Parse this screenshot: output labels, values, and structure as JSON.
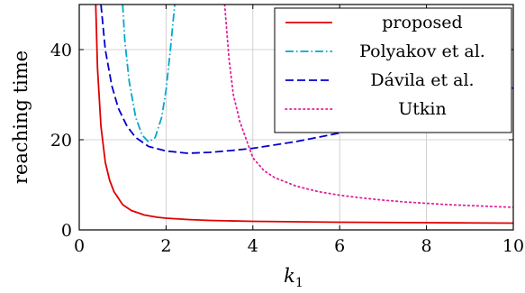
{
  "chart_data": {
    "type": "line",
    "xlabel": "k",
    "xlabel_sub": "1",
    "ylabel": "reaching time",
    "xlim": [
      0,
      10
    ],
    "ylim": [
      0,
      50
    ],
    "xticks": [
      0,
      2,
      4,
      6,
      8,
      10
    ],
    "yticks": [
      0,
      20,
      40
    ],
    "grid": true,
    "legend_position": "top-right",
    "series": [
      {
        "name": "proposed",
        "color": "#e00000",
        "dash": "solid",
        "points": [
          [
            0.38,
            50
          ],
          [
            0.42,
            36
          ],
          [
            0.5,
            23
          ],
          [
            0.6,
            15
          ],
          [
            0.7,
            11
          ],
          [
            0.8,
            8.5
          ],
          [
            1.0,
            5.6
          ],
          [
            1.2,
            4.3
          ],
          [
            1.5,
            3.3
          ],
          [
            1.8,
            2.8
          ],
          [
            2.0,
            2.6
          ],
          [
            2.5,
            2.3
          ],
          [
            3.0,
            2.1
          ],
          [
            4.0,
            1.9
          ],
          [
            5.0,
            1.8
          ],
          [
            6.0,
            1.7
          ],
          [
            7.0,
            1.65
          ],
          [
            8.0,
            1.6
          ],
          [
            9.0,
            1.55
          ],
          [
            10.0,
            1.5
          ]
        ]
      },
      {
        "name": "Polyakov et al.",
        "color": "#00a8cc",
        "dash": "dashdot",
        "points": [
          [
            1.0,
            50
          ],
          [
            1.05,
            42
          ],
          [
            1.15,
            33
          ],
          [
            1.3,
            25
          ],
          [
            1.45,
            21
          ],
          [
            1.6,
            19.5
          ],
          [
            1.75,
            20.5
          ],
          [
            1.9,
            25
          ],
          [
            2.0,
            31
          ],
          [
            2.1,
            40
          ],
          [
            2.2,
            50
          ]
        ]
      },
      {
        "name": "Dávila et al.",
        "color": "#0000cc",
        "dash": "dashed",
        "points": [
          [
            0.5,
            50
          ],
          [
            0.6,
            40
          ],
          [
            0.75,
            32
          ],
          [
            0.9,
            27
          ],
          [
            1.1,
            23
          ],
          [
            1.3,
            20.5
          ],
          [
            1.6,
            18.5
          ],
          [
            2.0,
            17.5
          ],
          [
            2.5,
            17
          ],
          [
            3.0,
            17.2
          ],
          [
            3.5,
            17.6
          ],
          [
            4.0,
            18.1
          ],
          [
            5.0,
            19.6
          ],
          [
            6.0,
            21.5
          ],
          [
            7.0,
            23.6
          ],
          [
            8.0,
            26
          ],
          [
            9.0,
            28.5
          ],
          [
            10.0,
            31.5
          ]
        ]
      },
      {
        "name": "Utkin",
        "color": "#e0209a",
        "dash": "dotted",
        "points": [
          [
            3.35,
            50
          ],
          [
            3.45,
            38
          ],
          [
            3.55,
            30
          ],
          [
            3.7,
            24
          ],
          [
            3.85,
            20
          ],
          [
            4.0,
            16
          ],
          [
            4.25,
            13.2
          ],
          [
            4.5,
            11.6
          ],
          [
            5.0,
            9.7
          ],
          [
            5.5,
            8.5
          ],
          [
            6.0,
            7.7
          ],
          [
            6.5,
            7.1
          ],
          [
            7.0,
            6.6
          ],
          [
            7.5,
            6.2
          ],
          [
            8.0,
            5.9
          ],
          [
            8.5,
            5.6
          ],
          [
            9.0,
            5.4
          ],
          [
            9.5,
            5.2
          ],
          [
            10.0,
            5.0
          ]
        ]
      }
    ]
  }
}
